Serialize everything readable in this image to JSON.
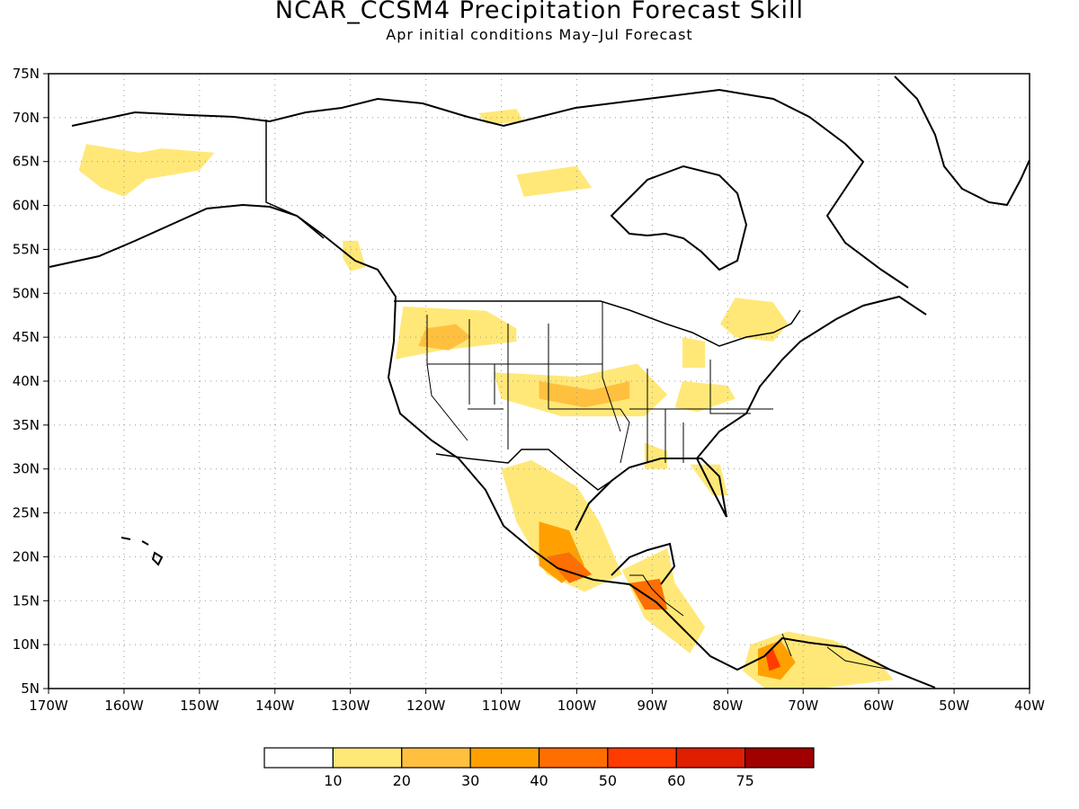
{
  "header": {
    "title": "NCAR_CCSM4 Precipitation Forecast Skill",
    "subtitle": "Apr initial conditions  May–Jul Forecast"
  },
  "map": {
    "lon_range": [
      -170,
      -40
    ],
    "lat_range": [
      5,
      75
    ],
    "lon_ticks": [
      {
        "value": -170,
        "label": "170W"
      },
      {
        "value": -160,
        "label": "160W"
      },
      {
        "value": -150,
        "label": "150W"
      },
      {
        "value": -140,
        "label": "140W"
      },
      {
        "value": -130,
        "label": "130W"
      },
      {
        "value": -120,
        "label": "120W"
      },
      {
        "value": -110,
        "label": "110W"
      },
      {
        "value": -100,
        "label": "100W"
      },
      {
        "value": -90,
        "label": "90W"
      },
      {
        "value": -80,
        "label": "80W"
      },
      {
        "value": -70,
        "label": "70W"
      },
      {
        "value": -60,
        "label": "60W"
      },
      {
        "value": -50,
        "label": "50W"
      },
      {
        "value": -40,
        "label": "40W"
      }
    ],
    "lat_ticks": [
      {
        "value": 75,
        "label": "75N"
      },
      {
        "value": 70,
        "label": "70N"
      },
      {
        "value": 65,
        "label": "65N"
      },
      {
        "value": 60,
        "label": "60N"
      },
      {
        "value": 55,
        "label": "55N"
      },
      {
        "value": 50,
        "label": "50N"
      },
      {
        "value": 45,
        "label": "45N"
      },
      {
        "value": 40,
        "label": "40N"
      },
      {
        "value": 35,
        "label": "35N"
      },
      {
        "value": 30,
        "label": "30N"
      },
      {
        "value": 25,
        "label": "25N"
      },
      {
        "value": 20,
        "label": "20N"
      },
      {
        "value": 15,
        "label": "15N"
      },
      {
        "value": 10,
        "label": "10N"
      },
      {
        "value": 5,
        "label": "5N"
      }
    ],
    "grid": true,
    "skill_regions": [
      {
        "name": "alaska",
        "level": 1,
        "points": [
          [
            -165,
            67
          ],
          [
            -158,
            66
          ],
          [
            -155,
            66.5
          ],
          [
            -148,
            66
          ],
          [
            -150,
            64
          ],
          [
            -157,
            63
          ],
          [
            -160,
            61
          ],
          [
            -163,
            62
          ],
          [
            -166,
            64
          ]
        ]
      },
      {
        "name": "yukon-bc-coast",
        "level": 1,
        "points": [
          [
            -131,
            56
          ],
          [
            -129,
            56
          ],
          [
            -128,
            53
          ],
          [
            -130,
            52.5
          ],
          [
            -131,
            54
          ]
        ]
      },
      {
        "name": "arctic-islands",
        "level": 1,
        "points": [
          [
            -113,
            70.5
          ],
          [
            -108,
            71
          ],
          [
            -107,
            69.5
          ],
          [
            -112,
            69.3
          ]
        ]
      },
      {
        "name": "hudson-area",
        "level": 1,
        "points": [
          [
            -108,
            63.5
          ],
          [
            -100,
            64.5
          ],
          [
            -98,
            62
          ],
          [
            -107,
            61
          ]
        ]
      },
      {
        "name": "quebec",
        "level": 1,
        "points": [
          [
            -79,
            49.5
          ],
          [
            -74,
            49
          ],
          [
            -72,
            46.5
          ],
          [
            -74,
            44.5
          ],
          [
            -79,
            45
          ],
          [
            -81,
            46.5
          ]
        ]
      },
      {
        "name": "pacific-nw",
        "level": 1,
        "points": [
          [
            -123,
            48.5
          ],
          [
            -112,
            48
          ],
          [
            -108,
            46
          ],
          [
            -108,
            44.5
          ],
          [
            -118,
            43.5
          ],
          [
            -124,
            42.5
          ]
        ]
      },
      {
        "name": "pacific-nw-core",
        "level": 2,
        "points": [
          [
            -120,
            46
          ],
          [
            -116,
            46.5
          ],
          [
            -114,
            45
          ],
          [
            -117,
            43.5
          ],
          [
            -121,
            44
          ]
        ]
      },
      {
        "name": "central-plains",
        "level": 1,
        "points": [
          [
            -111,
            41
          ],
          [
            -100,
            40.5
          ],
          [
            -92,
            42
          ],
          [
            -88,
            38.5
          ],
          [
            -91,
            36
          ],
          [
            -102,
            36
          ],
          [
            -110,
            38
          ]
        ]
      },
      {
        "name": "central-plains-core",
        "level": 2,
        "points": [
          [
            -105,
            40
          ],
          [
            -98,
            39
          ],
          [
            -93,
            40
          ],
          [
            -93,
            38
          ],
          [
            -99,
            37
          ],
          [
            -105,
            38
          ]
        ]
      },
      {
        "name": "ohio-valley",
        "level": 1,
        "points": [
          [
            -86,
            40
          ],
          [
            -80,
            39.5
          ],
          [
            -79,
            38
          ],
          [
            -84,
            36.5
          ],
          [
            -87,
            37
          ]
        ]
      },
      {
        "name": "michigan",
        "level": 1,
        "points": [
          [
            -86,
            45
          ],
          [
            -83,
            44.5
          ],
          [
            -83,
            41.5
          ],
          [
            -86,
            41.5
          ]
        ]
      },
      {
        "name": "florida",
        "level": 1,
        "points": [
          [
            -85,
            30.5
          ],
          [
            -81,
            30.5
          ],
          [
            -80,
            27
          ],
          [
            -82,
            27
          ]
        ]
      },
      {
        "name": "gulf-coast",
        "level": 1,
        "points": [
          [
            -91,
            33
          ],
          [
            -88,
            32
          ],
          [
            -88,
            30
          ],
          [
            -91,
            30
          ]
        ]
      },
      {
        "name": "mexico-west",
        "level": 1,
        "points": [
          [
            -110,
            30
          ],
          [
            -106,
            31
          ],
          [
            -100,
            28
          ],
          [
            -97,
            24
          ],
          [
            -94,
            18
          ],
          [
            -99,
            16
          ],
          [
            -104,
            18
          ],
          [
            -108,
            24
          ]
        ]
      },
      {
        "name": "mexico-west-core",
        "level": 3,
        "points": [
          [
            -105,
            24
          ],
          [
            -101,
            23
          ],
          [
            -99,
            19
          ],
          [
            -102,
            17
          ],
          [
            -105,
            19
          ]
        ]
      },
      {
        "name": "mexico-south-core",
        "level": 4,
        "points": [
          [
            -104,
            20
          ],
          [
            -101,
            20.5
          ],
          [
            -98,
            18
          ],
          [
            -101,
            17
          ]
        ]
      },
      {
        "name": "central-america",
        "level": 1,
        "points": [
          [
            -94,
            18.5
          ],
          [
            -88,
            21
          ],
          [
            -87,
            17
          ],
          [
            -83,
            12
          ],
          [
            -85,
            9
          ],
          [
            -91,
            13
          ]
        ]
      },
      {
        "name": "central-america-core",
        "level": 4,
        "points": [
          [
            -93,
            17
          ],
          [
            -89,
            17.5
          ],
          [
            -88,
            14
          ],
          [
            -91,
            14
          ]
        ]
      },
      {
        "name": "venezuela",
        "level": 1,
        "points": [
          [
            -77,
            10
          ],
          [
            -72,
            11.5
          ],
          [
            -66,
            10.5
          ],
          [
            -60,
            8
          ],
          [
            -58,
            6
          ],
          [
            -68,
            5
          ],
          [
            -75,
            5
          ],
          [
            -78,
            7
          ]
        ]
      },
      {
        "name": "venezuela-core",
        "level": 3,
        "points": [
          [
            -76,
            9.5
          ],
          [
            -73,
            10.5
          ],
          [
            -71,
            8
          ],
          [
            -73,
            6
          ],
          [
            -76,
            6.5
          ]
        ]
      },
      {
        "name": "venezuela-red",
        "level": 5,
        "points": [
          [
            -75,
            9
          ],
          [
            -74,
            9.5
          ],
          [
            -73,
            7.5
          ],
          [
            -74.5,
            7
          ]
        ]
      }
    ]
  },
  "colorbar": {
    "colors": [
      "#ffffff",
      "#ffe878",
      "#ffc040",
      "#ffa000",
      "#ff6e00",
      "#ff3c00",
      "#e01e00",
      "#a00000"
    ],
    "labels": [
      "10",
      "20",
      "30",
      "40",
      "50",
      "60",
      "75"
    ]
  }
}
